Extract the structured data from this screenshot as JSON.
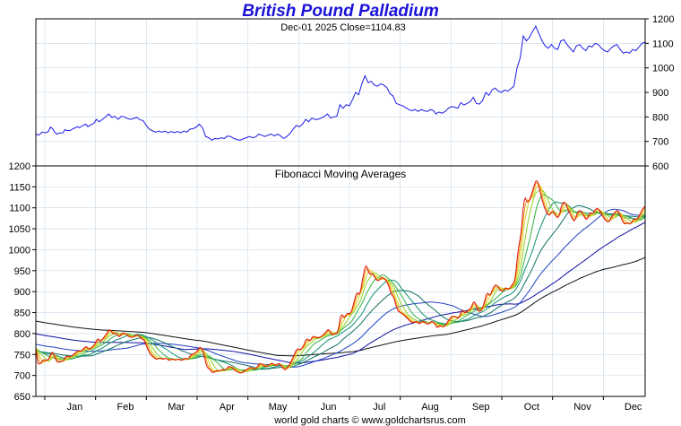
{
  "title": "British Pound Palladium",
  "subtitle": "Dec-01  2025   Close=1104.83",
  "footer": "world gold charts © www.goldchartsrus.com",
  "colors": {
    "title": "#1a12d8",
    "price": "#1a1ae6",
    "grid": "#c8d8e8"
  },
  "chart_data": [
    {
      "type": "line",
      "panel": "top",
      "title": "",
      "ylim": [
        600,
        1200
      ],
      "yticks": [
        "1200",
        "1100",
        "1000",
        "900",
        "800",
        "700",
        "600"
      ],
      "series": [
        {
          "values": [
            [
              0,
              730
            ],
            [
              3,
              726
            ],
            [
              6,
              738
            ],
            [
              9,
              735
            ],
            [
              12,
              740
            ],
            [
              14,
              758
            ],
            [
              16,
              752
            ],
            [
              18,
              738
            ],
            [
              20,
              730
            ],
            [
              23,
              734
            ],
            [
              26,
              735
            ],
            [
              28,
              748
            ],
            [
              30,
              744
            ],
            [
              33,
              745
            ],
            [
              36,
              752
            ],
            [
              40,
              760
            ],
            [
              42,
              756
            ],
            [
              45,
              765
            ],
            [
              48,
              770
            ],
            [
              50,
              760
            ],
            [
              53,
              768
            ],
            [
              56,
              775
            ],
            [
              58,
              790
            ],
            [
              61,
              780
            ],
            [
              64,
              790
            ],
            [
              67,
              800
            ],
            [
              70,
              812
            ],
            [
              73,
              798
            ],
            [
              76,
              802
            ],
            [
              79,
              790
            ],
            [
              82,
              802
            ],
            [
              85,
              800
            ],
            [
              88,
              793
            ],
            [
              91,
              790
            ],
            [
              94,
              794
            ],
            [
              97,
              798
            ],
            [
              100,
              788
            ],
            [
              103,
              785
            ],
            [
              106,
              765
            ],
            [
              109,
              750
            ],
            [
              112,
              743
            ],
            [
              115,
              738
            ],
            [
              118,
              742
            ],
            [
              121,
              738
            ],
            [
              124,
              742
            ],
            [
              127,
              735
            ],
            [
              130,
              740
            ],
            [
              133,
              736
            ],
            [
              136,
              740
            ],
            [
              139,
              735
            ],
            [
              142,
              742
            ],
            [
              145,
              738
            ],
            [
              148,
              750
            ],
            [
              151,
              752
            ],
            [
              154,
              758
            ],
            [
              157,
              770
            ],
            [
              160,
              755
            ],
            [
              163,
              720
            ],
            [
              166,
              715
            ],
            [
              169,
              705
            ],
            [
              172,
              712
            ],
            [
              175,
              710
            ],
            [
              178,
              715
            ],
            [
              181,
              712
            ],
            [
              184,
              722
            ],
            [
              187,
              720
            ],
            [
              190,
              712
            ],
            [
              193,
              708
            ],
            [
              196,
              705
            ],
            [
              199,
              710
            ],
            [
              202,
              715
            ],
            [
              205,
              720
            ],
            [
              208,
              715
            ],
            [
              211,
              718
            ],
            [
              214,
              730
            ],
            [
              217,
              725
            ],
            [
              220,
              720
            ],
            [
              223,
              726
            ],
            [
              226,
              730
            ],
            [
              229,
              722
            ],
            [
              232,
              730
            ],
            [
              235,
              722
            ],
            [
              238,
              712
            ],
            [
              241,
              720
            ],
            [
              244,
              732
            ],
            [
              247,
              750
            ],
            [
              250,
              765
            ],
            [
              253,
              760
            ],
            [
              256,
              770
            ],
            [
              259,
              790
            ],
            [
              262,
              780
            ],
            [
              265,
              795
            ],
            [
              268,
              790
            ],
            [
              271,
              790
            ],
            [
              274,
              795
            ],
            [
              277,
              802
            ],
            [
              280,
              812
            ],
            [
              283,
              795
            ],
            [
              286,
              800
            ],
            [
              289,
              802
            ],
            [
              292,
              850
            ],
            [
              295,
              835
            ],
            [
              298,
              850
            ],
            [
              301,
              845
            ],
            [
              304,
              870
            ],
            [
              307,
              900
            ],
            [
              310,
              890
            ],
            [
              313,
              935
            ],
            [
              316,
              968
            ],
            [
              319,
              940
            ],
            [
              322,
              945
            ],
            [
              325,
              930
            ],
            [
              328,
              925
            ],
            [
              331,
              935
            ],
            [
              334,
              930
            ],
            [
              337,
              920
            ],
            [
              340,
              895
            ],
            [
              343,
              885
            ],
            [
              346,
              855
            ],
            [
              349,
              850
            ],
            [
              352,
              845
            ],
            [
              355,
              838
            ],
            [
              358,
              830
            ],
            [
              361,
              825
            ],
            [
              364,
              830
            ],
            [
              367,
              822
            ],
            [
              370,
              830
            ],
            [
              373,
              825
            ],
            [
              376,
              822
            ],
            [
              379,
              830
            ],
            [
              382,
              825
            ],
            [
              384,
              812
            ],
            [
              387,
              820
            ],
            [
              390,
              815
            ],
            [
              393,
              822
            ],
            [
              396,
              835
            ],
            [
              399,
              842
            ],
            [
              402,
              840
            ],
            [
              405,
              835
            ],
            [
              408,
              858
            ],
            [
              411,
              848
            ],
            [
              414,
              855
            ],
            [
              417,
              862
            ],
            [
              420,
              880
            ],
            [
              423,
              855
            ],
            [
              426,
              852
            ],
            [
              429,
              868
            ],
            [
              432,
              900
            ],
            [
              435,
              888
            ],
            [
              438,
              910
            ],
            [
              441,
              918
            ],
            [
              444,
              905
            ],
            [
              447,
              900
            ],
            [
              450,
              910
            ],
            [
              453,
              905
            ],
            [
              456,
              915
            ],
            [
              459,
              925
            ],
            [
              462,
              1000
            ],
            [
              465,
              1040
            ],
            [
              468,
              1130
            ],
            [
              471,
              1110
            ],
            [
              474,
              1125
            ],
            [
              477,
              1150
            ],
            [
              480,
              1170
            ],
            [
              483,
              1140
            ],
            [
              486,
              1110
            ],
            [
              489,
              1090
            ],
            [
              492,
              1080
            ],
            [
              495,
              1095
            ],
            [
              498,
              1080
            ],
            [
              501,
              1075
            ],
            [
              504,
              1110
            ],
            [
              507,
              1115
            ],
            [
              510,
              1095
            ],
            [
              513,
              1080
            ],
            [
              516,
              1065
            ],
            [
              519,
              1090
            ],
            [
              522,
              1095
            ],
            [
              525,
              1080
            ],
            [
              528,
              1070
            ],
            [
              531,
              1090
            ],
            [
              534,
              1085
            ],
            [
              537,
              1100
            ],
            [
              540,
              1095
            ],
            [
              543,
              1080
            ],
            [
              546,
              1070
            ],
            [
              549,
              1065
            ],
            [
              552,
              1080
            ],
            [
              555,
              1090
            ],
            [
              558,
              1095
            ],
            [
              561,
              1075
            ],
            [
              564,
              1060
            ],
            [
              567,
              1065
            ],
            [
              570,
              1060
            ],
            [
              573,
              1075
            ],
            [
              576,
              1070
            ],
            [
              579,
              1085
            ],
            [
              582,
              1100
            ],
            [
              585,
              1104.83
            ]
          ]
        }
      ]
    },
    {
      "type": "line",
      "panel": "bottom",
      "title": "Fibonacci Moving Averages",
      "ylim": [
        650,
        1200
      ],
      "yticks": [
        "1200",
        "1150",
        "1100",
        "1050",
        "1000",
        "950",
        "900",
        "850",
        "800",
        "750",
        "700",
        "650"
      ],
      "xticks": [
        "Jan",
        "Feb",
        "Mar",
        "Apr",
        "May",
        "Jun",
        "Jul",
        "Aug",
        "Sep",
        "Oct",
        "Nov",
        "Dec"
      ],
      "ma_periods": [
        3,
        5,
        8,
        13,
        21,
        34,
        55,
        89,
        144,
        233
      ],
      "ma_colors": [
        "#dd1010",
        "#f0a010",
        "#d8d020",
        "#8cd020",
        "#30b040",
        "#109070",
        "#107060",
        "#2040c0",
        "#1010a0",
        "#101010"
      ],
      "ma_start": [
        780,
        775,
        770,
        768,
        766,
        762,
        760,
        775,
        800,
        830
      ]
    }
  ]
}
